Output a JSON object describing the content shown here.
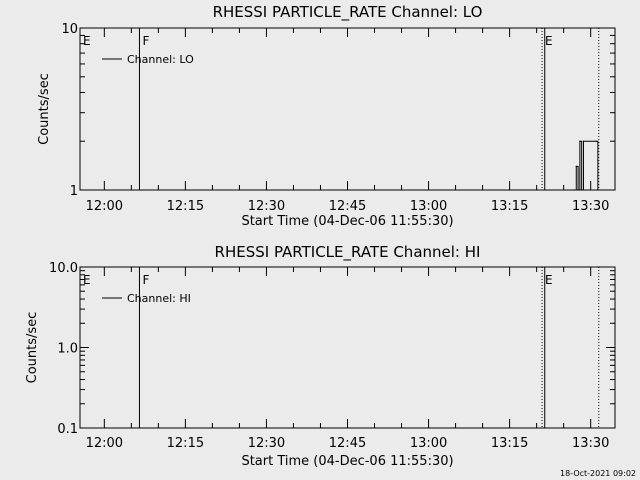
{
  "chart_data": [
    {
      "type": "line",
      "title": "RHESSI PARTICLE_RATE Channel: LO",
      "xlabel": "Start Time (04-Dec-06 11:55:30)",
      "ylabel": "Counts/sec",
      "yscale": "log",
      "ylim": [
        1,
        10
      ],
      "yticks": [
        {
          "value": 1,
          "label": "1"
        },
        {
          "value": 10,
          "label": "10"
        }
      ],
      "xlim": [
        "11:55:30",
        "13:34:30"
      ],
      "xticks": [
        "12:00",
        "12:15",
        "12:30",
        "12:45",
        "13:00",
        "13:15",
        "13:30"
      ],
      "legend": {
        "position": "top-left",
        "label": "Channel: LO"
      },
      "markers": [
        {
          "label": "E",
          "time": "11:55:30",
          "style": "none"
        },
        {
          "label": "F",
          "time": "12:06:30",
          "style": "solid"
        },
        {
          "label": "E",
          "time": "13:21:00",
          "style": "dotted"
        },
        {
          "label": "",
          "time": "13:21:30",
          "style": "solid"
        },
        {
          "label": "",
          "time": "13:31:30",
          "style": "dotted"
        }
      ],
      "series": [
        {
          "name": "Channel: LO",
          "x": [
            "13:27:00",
            "13:27:20",
            "13:27:40",
            "13:28:00",
            "13:28:20",
            "13:28:40",
            "13:31:00",
            "13:31:20"
          ],
          "y": [
            1,
            1.4,
            1,
            2,
            1,
            2,
            2,
            1
          ]
        }
      ]
    },
    {
      "type": "line",
      "title": "RHESSI PARTICLE_RATE Channel: HI",
      "xlabel": "Start Time (04-Dec-06 11:55:30)",
      "ylabel": "Counts/sec",
      "yscale": "log",
      "ylim": [
        0.1,
        10
      ],
      "yticks": [
        {
          "value": 0.1,
          "label": "0.1"
        },
        {
          "value": 1,
          "label": "1.0"
        },
        {
          "value": 10,
          "label": "10.0"
        }
      ],
      "xlim": [
        "11:55:30",
        "13:34:30"
      ],
      "xticks": [
        "12:00",
        "12:15",
        "12:30",
        "12:45",
        "13:00",
        "13:15",
        "13:30"
      ],
      "legend": {
        "position": "top-left",
        "label": "Channel: HI"
      },
      "markers": [
        {
          "label": "E",
          "time": "11:55:30",
          "style": "none"
        },
        {
          "label": "F",
          "time": "12:06:30",
          "style": "solid"
        },
        {
          "label": "E",
          "time": "13:21:00",
          "style": "dotted"
        },
        {
          "label": "",
          "time": "13:21:30",
          "style": "solid"
        },
        {
          "label": "",
          "time": "13:31:30",
          "style": "dotted"
        }
      ],
      "series": [
        {
          "name": "Channel: HI",
          "x": [],
          "y": []
        }
      ]
    }
  ],
  "footer_timestamp": "18-Oct-2021 09:02"
}
